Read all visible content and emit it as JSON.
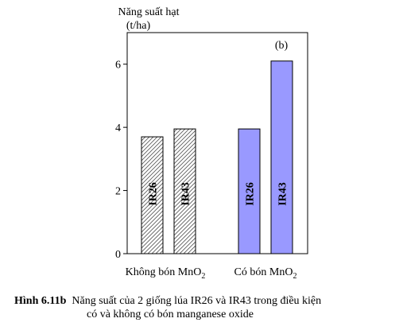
{
  "chart_data": {
    "type": "bar",
    "ylabel_line1": "Năng suất hạt",
    "ylabel_line2": "(t/ha)",
    "panel_label": "(b)",
    "ylim": [
      0,
      7
    ],
    "yticks": [
      0,
      2,
      4,
      6
    ],
    "groups": [
      {
        "name": "Không bón MnO",
        "subscript": "2",
        "style": "hatched",
        "bars": [
          {
            "label": "IR26",
            "value": 3.7
          },
          {
            "label": "IR43",
            "value": 3.95
          }
        ]
      },
      {
        "name": "Có bón MnO",
        "subscript": "2",
        "style": "filled",
        "bars": [
          {
            "label": "IR26",
            "value": 3.95
          },
          {
            "label": "IR43",
            "value": 6.1
          }
        ]
      }
    ],
    "colors": {
      "filled": "#9999ff",
      "hatched_line": "#555555",
      "outline": "#000000"
    }
  },
  "caption": {
    "label": "Hình 6.11b",
    "line1": "Năng suất của 2 giống lúa IR26 và IR43 trong điều kiện",
    "line2": "có và không có bón manganese oxide"
  }
}
